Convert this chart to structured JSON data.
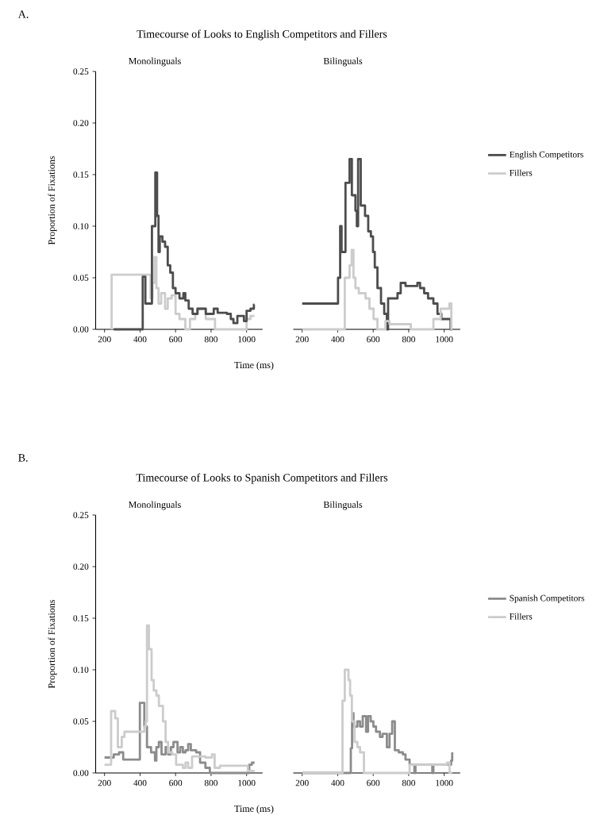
{
  "chart_data": [
    {
      "type": "step",
      "title": "Timecourse of Looks to English Competitors and Fillers",
      "subtitle": "Monolinguals",
      "annotations": [
        "A."
      ],
      "xlabel": "Time (ms)",
      "ylabel": "Proportion of Fixations",
      "xlim": [
        150,
        1090
      ],
      "ylim": [
        0,
        0.25
      ],
      "xticks": [
        200,
        400,
        600,
        800,
        1000
      ],
      "yticks": [
        {
          "value": 0,
          "label": "0.00"
        },
        {
          "value": 0.05,
          "label": "0.05"
        },
        {
          "value": 0.1,
          "label": "0.10"
        },
        {
          "value": 0.15,
          "label": "0.15"
        },
        {
          "value": 0.2,
          "label": "0.20"
        },
        {
          "value": 0.25,
          "label": "0.25"
        }
      ],
      "series": [
        {
          "color": "#cccccc",
          "x": [
            240,
            240,
            459,
            470,
            481,
            492,
            504,
            519,
            541,
            556,
            578,
            600,
            622,
            655,
            681,
            711,
            726,
            770,
            822,
            1000,
            1022,
            1044
          ],
          "values": [
            0,
            0.053,
            0.03,
            0.045,
            0.07,
            0.04,
            0.025,
            0.035,
            0.02,
            0.03,
            0.033,
            0.015,
            0.01,
            0,
            0.01,
            0.015,
            0.02,
            0.01,
            0,
            0.01,
            0.013,
            0.013
          ]
        },
        {
          "color": "#4d4d4d",
          "x": [
            252,
            415,
            430,
            467,
            486,
            496,
            504,
            511,
            526,
            541,
            556,
            570,
            585,
            600,
            622,
            644,
            655,
            674,
            696,
            723,
            770,
            815,
            837,
            889,
            911,
            926,
            948,
            985,
            1000,
            1022,
            1041,
            1044
          ],
          "values": [
            0,
            0.051,
            0.025,
            0.1,
            0.152,
            0.11,
            0.075,
            0.09,
            0.085,
            0.08,
            0.062,
            0.055,
            0.04,
            0.035,
            0.03,
            0.035,
            0.028,
            0.02,
            0.015,
            0.02,
            0.015,
            0.02,
            0.016,
            0.015,
            0.01,
            0.006,
            0.013,
            0.008,
            0.018,
            0.02,
            0.024,
            0.024
          ]
        }
      ]
    },
    {
      "type": "step",
      "subtitle": "Bilinguals",
      "xlim": [
        150,
        1090
      ],
      "ylim": [
        0,
        0.25
      ],
      "xticks": [
        200,
        400,
        600,
        800,
        1000
      ],
      "tick_labels": "x",
      "legend": "right",
      "series": [
        {
          "name": "English Competitors",
          "color": "#4d4d4d",
          "x": [
            200,
            402,
            414,
            422,
            444,
            467,
            480,
            500,
            508,
            515,
            530,
            554,
            572,
            587,
            599,
            609,
            624,
            644,
            662,
            677,
            684,
            737,
            755,
            782,
            812,
            849,
            864,
            887,
            909,
            939,
            962,
            984,
            1036,
            1045
          ],
          "values": [
            0.025,
            0.05,
            0.1,
            0.075,
            0.142,
            0.165,
            0.13,
            0.115,
            0.1,
            0.165,
            0.12,
            0.11,
            0.095,
            0.09,
            0.075,
            0.06,
            0.04,
            0.025,
            0.015,
            0,
            0.03,
            0.035,
            0.045,
            0.042,
            0.042,
            0.045,
            0.04,
            0.035,
            0.03,
            0.025,
            0.015,
            0.01,
            0,
            0
          ]
        },
        {
          "name": "Fillers",
          "color": "#cccccc",
          "x": [
            200,
            440,
            467,
            479,
            489,
            500,
            519,
            557,
            579,
            602,
            624,
            669,
            692,
            812,
            939,
            980,
            1029,
            1040,
            1045
          ],
          "values": [
            0,
            0.05,
            0.062,
            0.077,
            0.05,
            0.04,
            0.035,
            0.03,
            0.02,
            0.01,
            0,
            0.008,
            0.005,
            0,
            0.01,
            0.02,
            0.025,
            0,
            0
          ]
        }
      ]
    },
    {
      "type": "step",
      "title": "Timecourse of Looks to Spanish Competitors and Fillers",
      "subtitle": "Monolinguals",
      "annotations": [
        "B."
      ],
      "xlabel": "Time (ms)",
      "ylabel": "Proportion of Fixations",
      "xlim": [
        150,
        1090
      ],
      "ylim": [
        0,
        0.25
      ],
      "xticks": [
        200,
        400,
        600,
        800,
        1000
      ],
      "yticks": [
        {
          "value": 0,
          "label": "0.00"
        },
        {
          "value": 0.05,
          "label": "0.05"
        },
        {
          "value": 0.1,
          "label": "0.10"
        },
        {
          "value": 0.15,
          "label": "0.15"
        },
        {
          "value": 0.2,
          "label": "0.20"
        },
        {
          "value": 0.25,
          "label": "0.25"
        }
      ],
      "series": [
        {
          "color": "#8c8c8c",
          "x": [
            200,
            252,
            282,
            305,
            399,
            424,
            439,
            462,
            484,
            492,
            506,
            521,
            544,
            558,
            574,
            588,
            611,
            626,
            641,
            656,
            671,
            686,
            716,
            738,
            768,
            793,
            1015,
            1030,
            1045
          ],
          "values": [
            0.015,
            0.018,
            0.02,
            0.013,
            0.068,
            0.045,
            0.025,
            0.02,
            0.012,
            0.025,
            0.03,
            0.018,
            0.025,
            0.018,
            0.025,
            0.03,
            0.02,
            0.025,
            0.02,
            0.022,
            0.028,
            0.022,
            0.02,
            0.01,
            0.005,
            0,
            0.008,
            0.01,
            0.01
          ]
        },
        {
          "color": "#cccccc",
          "x": [
            200,
            237,
            260,
            275,
            297,
            312,
            424,
            432,
            439,
            450,
            465,
            477,
            492,
            506,
            529,
            544,
            558,
            581,
            603,
            641,
            656,
            671,
            693,
            745,
            768,
            805,
            820,
            850,
            1007,
            1045
          ],
          "values": [
            0.008,
            0.06,
            0.053,
            0.025,
            0.035,
            0.04,
            0.045,
            0.05,
            0.143,
            0.12,
            0.09,
            0.08,
            0.075,
            0.065,
            0.05,
            0.03,
            0.02,
            0.018,
            0.008,
            0.005,
            0.01,
            0.005,
            0.016,
            0.016,
            0.015,
            0.018,
            0.005,
            0.007,
            0.002,
            0.002
          ]
        }
      ]
    },
    {
      "type": "step",
      "subtitle": "Bilinguals",
      "xlim": [
        150,
        1090
      ],
      "ylim": [
        0,
        0.25
      ],
      "xticks": [
        200,
        400,
        600,
        800,
        1000
      ],
      "tick_labels": "x",
      "legend": "right",
      "series": [
        {
          "name": "Spanish Competitors",
          "color": "#8c8c8c",
          "x": [
            200,
            474,
            481,
            489,
            501,
            511,
            526,
            541,
            560,
            571,
            586,
            601,
            616,
            638,
            653,
            677,
            692,
            707,
            722,
            744,
            767,
            782,
            805,
            832,
            838,
            933,
            939,
            1039,
            1045
          ],
          "values": [
            0,
            0.024,
            0.058,
            0.045,
            0.045,
            0.05,
            0.045,
            0.055,
            0.04,
            0.055,
            0.05,
            0.045,
            0.04,
            0.035,
            0.038,
            0.025,
            0.038,
            0.05,
            0.022,
            0.02,
            0.018,
            0.013,
            0.008,
            0,
            0.008,
            0,
            0.008,
            0.012,
            0.02
          ]
        },
        {
          "name": "Fillers",
          "color": "#cccccc",
          "x": [
            200,
            427,
            440,
            461,
            470,
            480,
            495,
            511,
            526,
            548,
            805,
            1015,
            1030,
            1045
          ],
          "values": [
            0,
            0.07,
            0.1,
            0.09,
            0.075,
            0.05,
            0.03,
            0.025,
            0.02,
            0,
            0.008,
            0.01,
            0,
            0
          ]
        }
      ]
    }
  ]
}
